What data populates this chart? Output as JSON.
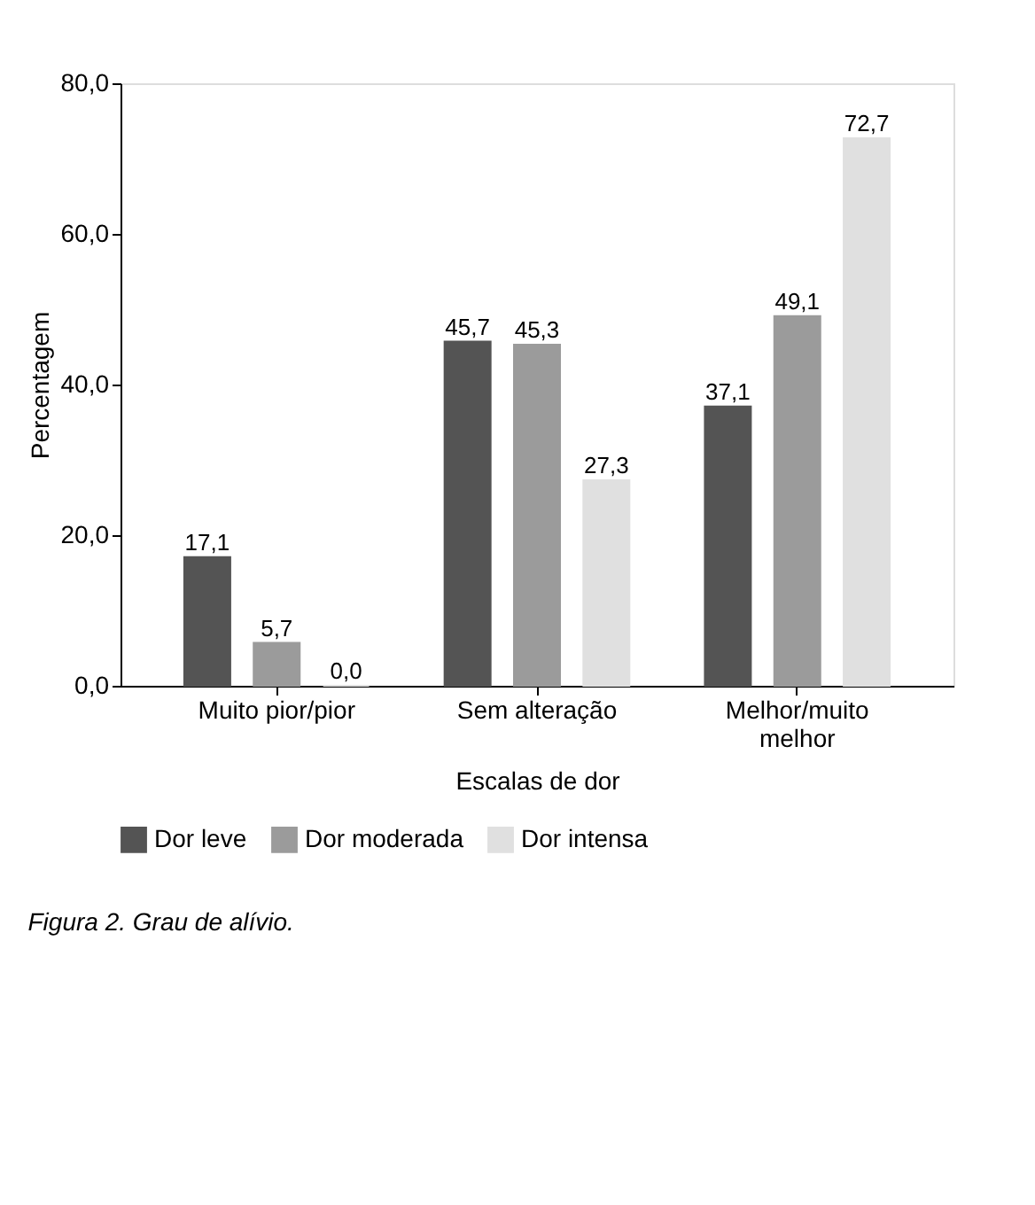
{
  "chart_data": {
    "type": "bar",
    "xlabel": "Escalas de dor",
    "ylabel": "Percentagem",
    "categories": [
      "Muito pior/pior",
      "Sem alteração",
      "Melhor/muito melhor"
    ],
    "series": [
      {
        "name": "Dor leve",
        "color": "#545454",
        "values": [
          17.1,
          45.7,
          37.1
        ],
        "value_labels": [
          "17,1",
          "45,7",
          "37,1"
        ]
      },
      {
        "name": "Dor moderada",
        "color": "#9b9b9b",
        "values": [
          5.7,
          45.3,
          49.1
        ],
        "value_labels": [
          "5,7",
          "45,3",
          "49,1"
        ]
      },
      {
        "name": "Dor intensa",
        "color": "#e0e0e0",
        "values": [
          0.0,
          27.3,
          72.7
        ],
        "value_labels": [
          "0,0",
          "27,3",
          "72,7"
        ]
      }
    ],
    "ylim": [
      0,
      80
    ],
    "yticks": [
      {
        "value": 0,
        "label": "0,0"
      },
      {
        "value": 20,
        "label": "20,0"
      },
      {
        "value": 40,
        "label": "40,0"
      },
      {
        "value": 60,
        "label": "60,0"
      },
      {
        "value": 80,
        "label": "80,0"
      }
    ],
    "grid": false,
    "legend": "bottom",
    "annotations": [
      "Figura 2. Grau de alívio."
    ]
  }
}
